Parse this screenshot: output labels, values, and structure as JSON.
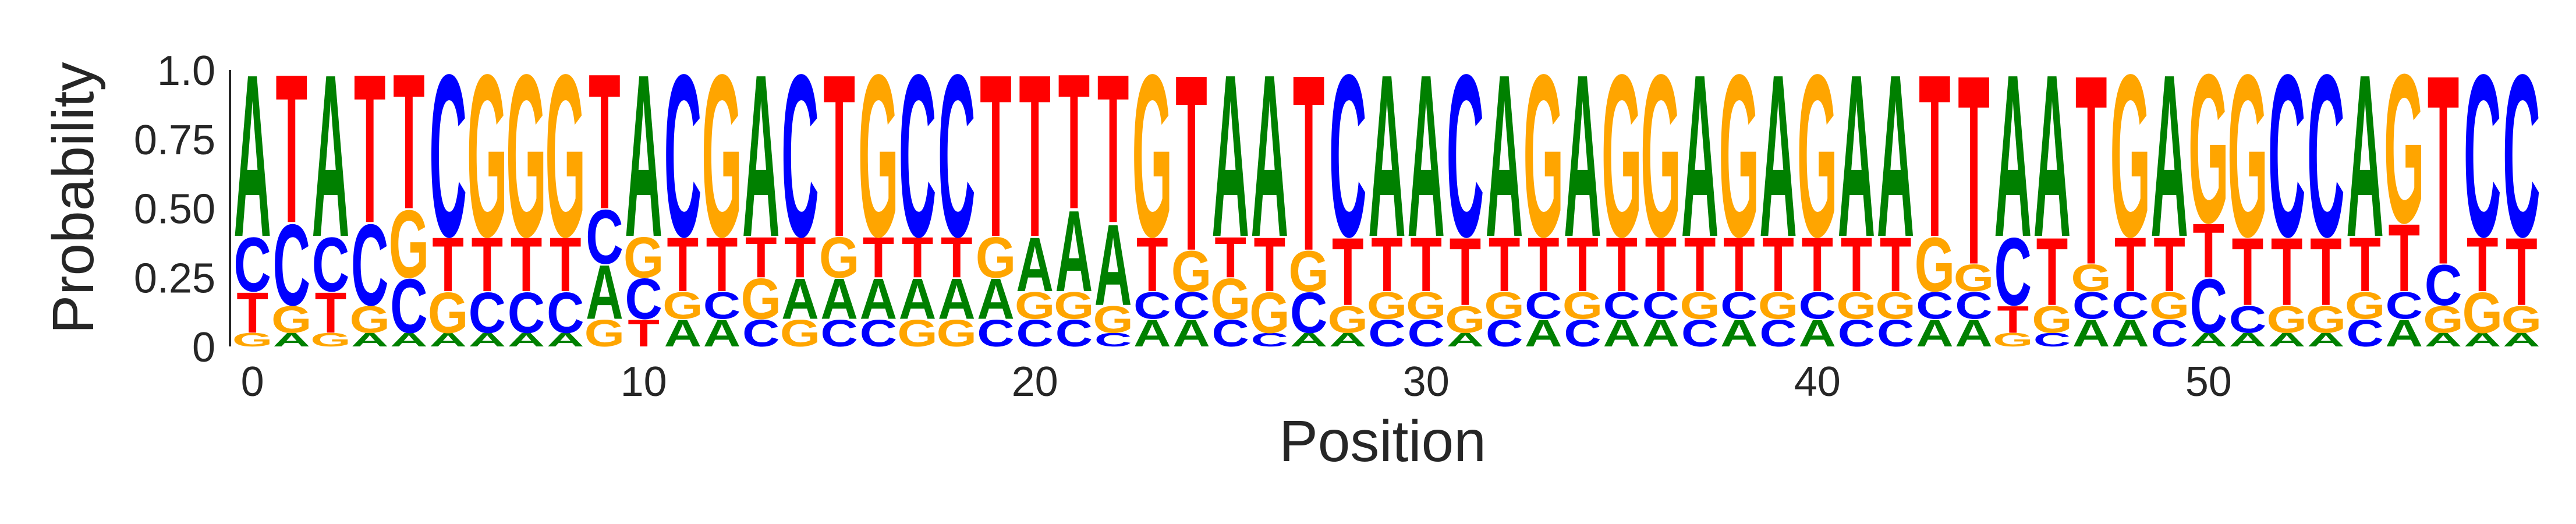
{
  "chart_data": {
    "type": "sequence-logo",
    "title": "",
    "xlabel": "Position",
    "ylabel": "Probability",
    "ylim": [
      0,
      1
    ],
    "y_ticks": [
      "0",
      "0.25",
      "0.50",
      "0.75",
      "1.0"
    ],
    "y_tick_values": [
      0,
      0.25,
      0.5,
      0.75,
      1.0
    ],
    "x_ticks": [
      "0",
      "10",
      "20",
      "30",
      "40",
      "50"
    ],
    "x_tick_values": [
      0,
      10,
      20,
      30,
      40,
      50
    ],
    "grid": false,
    "colors": {
      "A": "#008000",
      "C": "#0000ff",
      "G": "#ffa500",
      "T": "#ff0000"
    },
    "alphabet": [
      "A",
      "C",
      "G",
      "T"
    ],
    "positions": [
      {
        "A": 0.6,
        "C": 0.2,
        "G": 0.05,
        "T": 0.15
      },
      {
        "A": 0.05,
        "C": 0.3,
        "G": 0.1,
        "T": 0.55
      },
      {
        "A": 0.6,
        "C": 0.2,
        "G": 0.05,
        "T": 0.15
      },
      {
        "A": 0.05,
        "C": 0.3,
        "G": 0.1,
        "T": 0.55
      },
      {
        "A": 0.05,
        "C": 0.2,
        "G": 0.25,
        "T": 0.5
      },
      {
        "A": 0.05,
        "C": 0.6,
        "G": 0.15,
        "T": 0.2
      },
      {
        "A": 0.05,
        "C": 0.15,
        "G": 0.6,
        "T": 0.2
      },
      {
        "A": 0.05,
        "C": 0.15,
        "G": 0.6,
        "T": 0.2
      },
      {
        "A": 0.05,
        "C": 0.15,
        "G": 0.6,
        "T": 0.2
      },
      {
        "A": 0.2,
        "C": 0.2,
        "G": 0.1,
        "T": 0.5
      },
      {
        "A": 0.6,
        "C": 0.15,
        "G": 0.15,
        "T": 0.1
      },
      {
        "A": 0.1,
        "C": 0.6,
        "G": 0.1,
        "T": 0.2
      },
      {
        "A": 0.1,
        "C": 0.1,
        "G": 0.6,
        "T": 0.2
      },
      {
        "A": 0.6,
        "C": 0.1,
        "G": 0.15,
        "T": 0.15
      },
      {
        "A": 0.15,
        "C": 0.6,
        "G": 0.1,
        "T": 0.15
      },
      {
        "A": 0.15,
        "C": 0.1,
        "G": 0.15,
        "T": 0.6
      },
      {
        "A": 0.15,
        "C": 0.1,
        "G": 0.6,
        "T": 0.15
      },
      {
        "A": 0.15,
        "C": 0.6,
        "G": 0.1,
        "T": 0.15
      },
      {
        "A": 0.15,
        "C": 0.6,
        "G": 0.1,
        "T": 0.15
      },
      {
        "A": 0.15,
        "C": 0.1,
        "G": 0.15,
        "T": 0.6
      },
      {
        "A": 0.2,
        "C": 0.1,
        "G": 0.1,
        "T": 0.6
      },
      {
        "A": 0.3,
        "C": 0.1,
        "G": 0.1,
        "T": 0.5
      },
      {
        "A": 0.3,
        "C": 0.05,
        "G": 0.1,
        "T": 0.55
      },
      {
        "A": 0.1,
        "C": 0.1,
        "G": 0.6,
        "T": 0.2
      },
      {
        "A": 0.1,
        "C": 0.1,
        "G": 0.15,
        "T": 0.65
      },
      {
        "A": 0.6,
        "C": 0.1,
        "G": 0.15,
        "T": 0.15
      },
      {
        "A": 0.6,
        "C": 0.05,
        "G": 0.15,
        "T": 0.2
      },
      {
        "A": 0.05,
        "C": 0.15,
        "G": 0.15,
        "T": 0.65
      },
      {
        "A": 0.05,
        "C": 0.6,
        "G": 0.1,
        "T": 0.25
      },
      {
        "A": 0.6,
        "C": 0.1,
        "G": 0.1,
        "T": 0.2
      },
      {
        "A": 0.6,
        "C": 0.1,
        "G": 0.1,
        "T": 0.2
      },
      {
        "A": 0.05,
        "C": 0.6,
        "G": 0.1,
        "T": 0.25
      },
      {
        "A": 0.6,
        "C": 0.1,
        "G": 0.1,
        "T": 0.2
      },
      {
        "A": 0.1,
        "C": 0.1,
        "G": 0.6,
        "T": 0.2
      },
      {
        "A": 0.6,
        "C": 0.1,
        "G": 0.1,
        "T": 0.2
      },
      {
        "A": 0.1,
        "C": 0.1,
        "G": 0.6,
        "T": 0.2
      },
      {
        "A": 0.1,
        "C": 0.1,
        "G": 0.6,
        "T": 0.2
      },
      {
        "A": 0.6,
        "C": 0.1,
        "G": 0.1,
        "T": 0.2
      },
      {
        "A": 0.1,
        "C": 0.1,
        "G": 0.6,
        "T": 0.2
      },
      {
        "A": 0.6,
        "C": 0.1,
        "G": 0.1,
        "T": 0.2
      },
      {
        "A": 0.1,
        "C": 0.1,
        "G": 0.6,
        "T": 0.2
      },
      {
        "A": 0.6,
        "C": 0.1,
        "G": 0.1,
        "T": 0.2
      },
      {
        "A": 0.6,
        "C": 0.1,
        "G": 0.1,
        "T": 0.2
      },
      {
        "A": 0.1,
        "C": 0.1,
        "G": 0.2,
        "T": 0.6
      },
      {
        "A": 0.1,
        "C": 0.1,
        "G": 0.1,
        "T": 0.7
      },
      {
        "A": 0.6,
        "C": 0.25,
        "G": 0.05,
        "T": 0.1
      },
      {
        "A": 0.6,
        "C": 0.05,
        "G": 0.1,
        "T": 0.25
      },
      {
        "A": 0.1,
        "C": 0.1,
        "G": 0.1,
        "T": 0.7
      },
      {
        "A": 0.1,
        "C": 0.1,
        "G": 0.6,
        "T": 0.2
      },
      {
        "A": 0.6,
        "C": 0.1,
        "G": 0.1,
        "T": 0.2
      },
      {
        "A": 0.05,
        "C": 0.2,
        "G": 0.55,
        "T": 0.2
      },
      {
        "A": 0.05,
        "C": 0.1,
        "G": 0.6,
        "T": 0.25
      },
      {
        "A": 0.05,
        "C": 0.6,
        "G": 0.1,
        "T": 0.25
      },
      {
        "A": 0.05,
        "C": 0.6,
        "G": 0.1,
        "T": 0.25
      },
      {
        "A": 0.6,
        "C": 0.1,
        "G": 0.1,
        "T": 0.2
      },
      {
        "A": 0.1,
        "C": 0.1,
        "G": 0.55,
        "T": 0.25
      },
      {
        "A": 0.05,
        "C": 0.15,
        "G": 0.1,
        "T": 0.7
      },
      {
        "A": 0.05,
        "C": 0.6,
        "G": 0.15,
        "T": 0.2
      },
      {
        "A": 0.05,
        "C": 0.6,
        "G": 0.1,
        "T": 0.25
      }
    ]
  }
}
